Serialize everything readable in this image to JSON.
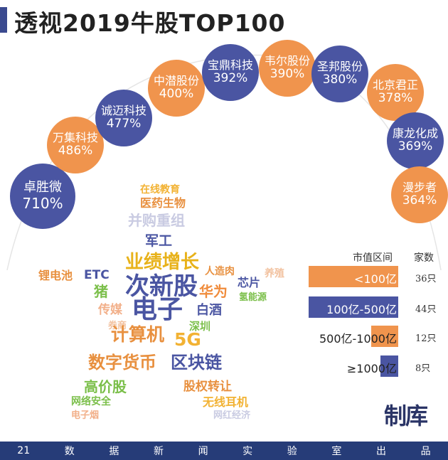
{
  "title": "透视2019牛股TOP100",
  "stocks": [
    {
      "name": "卓胜微",
      "pct": "710%",
      "color": "blue"
    },
    {
      "name": "万集科技",
      "pct": "486%",
      "color": "orange"
    },
    {
      "name": "诚迈科技",
      "pct": "477%",
      "color": "blue"
    },
    {
      "name": "中潜股份",
      "pct": "400%",
      "color": "orange"
    },
    {
      "name": "宝鼎科技",
      "pct": "392%",
      "color": "blue"
    },
    {
      "name": "韦尔股份",
      "pct": "390%",
      "color": "orange"
    },
    {
      "name": "圣邦股份",
      "pct": "380%",
      "color": "blue"
    },
    {
      "name": "北京君正",
      "pct": "378%",
      "color": "orange"
    },
    {
      "name": "康龙化成",
      "pct": "369%",
      "color": "blue"
    },
    {
      "name": "漫步者",
      "pct": "364%",
      "color": "orange"
    }
  ],
  "word_cloud": [
    {
      "text": "在线教育",
      "color": "#f2b233"
    },
    {
      "text": "医药生物",
      "color": "#e8903f"
    },
    {
      "text": "并购重组",
      "color": "#c9cbe2"
    },
    {
      "text": "军工",
      "color": "#4a55a2"
    },
    {
      "text": "业绩增长",
      "color": "#e8b21a"
    },
    {
      "text": "次新股",
      "color": "#4a55a2"
    },
    {
      "text": "锂电池",
      "color": "#e8903f"
    },
    {
      "text": "ETC",
      "color": "#4a55a2"
    },
    {
      "text": "猪",
      "color": "#7bbf4a"
    },
    {
      "text": "人造肉",
      "color": "#e8903f"
    },
    {
      "text": "芯片",
      "color": "#4a55a2"
    },
    {
      "text": "养殖",
      "color": "#f2c2a0"
    },
    {
      "text": "华为",
      "color": "#f08c3c"
    },
    {
      "text": "氢能源",
      "color": "#7bbf4a"
    },
    {
      "text": "传媒",
      "color": "#f2b08a"
    },
    {
      "text": "电子",
      "color": "#4a55a2"
    },
    {
      "text": "白酒",
      "color": "#4a55a2"
    },
    {
      "text": "券商",
      "color": "#f2c2a0"
    },
    {
      "text": "深圳",
      "color": "#7bbf4a"
    },
    {
      "text": "计算机",
      "color": "#e8903f"
    },
    {
      "text": "5G",
      "color": "#f2b233"
    },
    {
      "text": "数字货币",
      "color": "#e8903f"
    },
    {
      "text": "区块链",
      "color": "#4a55a2"
    },
    {
      "text": "高价股",
      "color": "#7bbf4a"
    },
    {
      "text": "股权转让",
      "color": "#e8903f"
    },
    {
      "text": "网络安全",
      "color": "#7bbf4a"
    },
    {
      "text": "无线耳机",
      "color": "#f2b233"
    },
    {
      "text": "电子烟",
      "color": "#f2b08a"
    },
    {
      "text": "网红经济",
      "color": "#c9cbe2"
    }
  ],
  "legend": {
    "col1": "市值区间",
    "col2": "家数",
    "rows": [
      {
        "label": "<100亿",
        "count": "36只",
        "fraction": 1.0,
        "color": "#f0944d"
      },
      {
        "label": "100亿-500亿",
        "count": "44只",
        "fraction": 1.0,
        "color": "#4a55a2"
      },
      {
        "label": "500亿-1000亿",
        "count": "12只",
        "fraction": 0.3,
        "color": "#f0944d"
      },
      {
        "label": "≥1000亿",
        "count": "8只",
        "fraction": 0.2,
        "color": "#4a55a2"
      }
    ]
  },
  "logo": "制库",
  "footer": [
    "21",
    "数",
    "据",
    "新",
    "闻",
    "实",
    "验",
    "室",
    "出",
    "品"
  ]
}
